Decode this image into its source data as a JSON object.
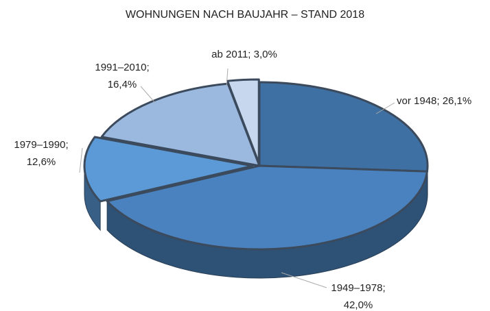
{
  "chart_data": {
    "type": "pie3d",
    "title": "WOHNUNGEN NACH BAUJAHR – STAND 2018",
    "labels": [
      [
        "vor 1948; 26,1%"
      ],
      [
        "1949–1978;",
        "42,0%"
      ],
      [
        "1979–1990;",
        "12,6%"
      ],
      [
        "1991–2010;",
        "16,4%"
      ],
      [
        "ab 2011; 3,0%"
      ]
    ],
    "values": [
      26.1,
      42.0,
      12.6,
      16.4,
      3.0
    ],
    "colors": [
      "#3f70a3",
      "#4a82bf",
      "#5b9ad6",
      "#9bb9de",
      "#c6d7ee"
    ]
  }
}
